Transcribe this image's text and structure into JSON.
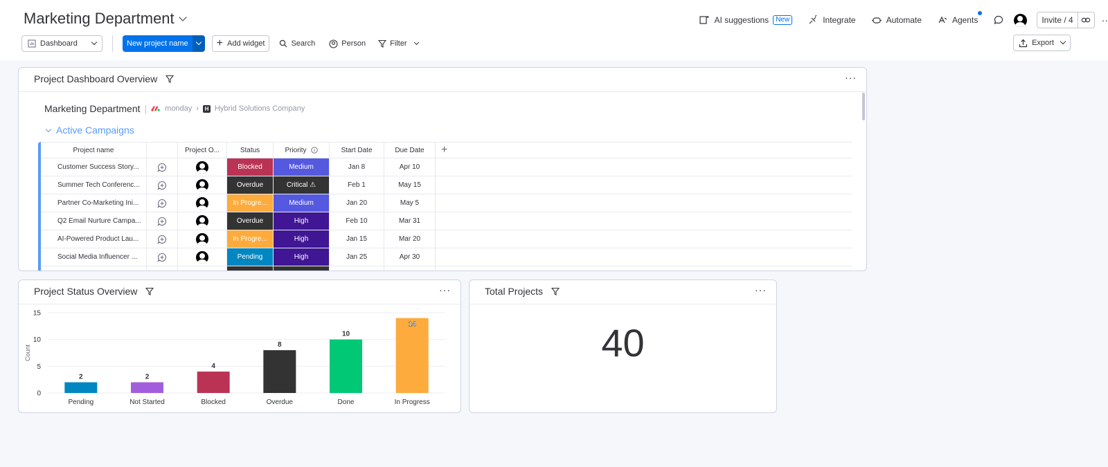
{
  "header": {
    "title": "Marketing Department",
    "ai_suggestions": "AI suggestions",
    "new_badge": "New",
    "integrate": "Integrate",
    "automate": "Automate",
    "agents": "Agents",
    "invite": "Invite / 4"
  },
  "toolbar": {
    "dashboard_select": "Dashboard",
    "new_project": "New project name",
    "add_widget": "Add widget",
    "search": "Search",
    "person": "Person",
    "filter": "Filter",
    "export": "Export"
  },
  "widget_table": {
    "title": "Project Dashboard Overview",
    "board_name": "Marketing Department",
    "workspace_app": "monday",
    "workspace": "Hybrid Solutions Company",
    "workspace_initial": "H",
    "group": "Active Campaigns",
    "columns": {
      "name": "Project name",
      "owner": "Project O...",
      "status": "Status",
      "priority": "Priority",
      "start": "Start Date",
      "due": "Due Date"
    },
    "rows": [
      {
        "name": "Customer Success Story...",
        "status": "Blocked",
        "priority": "Medium",
        "start": "Jan 8",
        "due": "Apr 10"
      },
      {
        "name": "Summer Tech Conferenc...",
        "status": "Overdue",
        "priority": "Critical ⚠",
        "start": "Feb 1",
        "due": "May 15"
      },
      {
        "name": "Partner Co-Marketing Ini...",
        "status": "In Progre...",
        "priority": "Medium",
        "start": "Jan 20",
        "due": "May 5"
      },
      {
        "name": "Q2 Email Nurture Campa...",
        "status": "Overdue",
        "priority": "High",
        "start": "Feb 10",
        "due": "Mar 31"
      },
      {
        "name": "AI-Powered Product Lau...",
        "status": "In Progre...",
        "priority": "High",
        "start": "Jan 15",
        "due": "Mar 20"
      },
      {
        "name": "Social Media Influencer ...",
        "status": "Pending",
        "priority": "High",
        "start": "Jan 25",
        "due": "Apr 30"
      }
    ]
  },
  "colors": {
    "Blocked": "#bb3354",
    "Overdue": "#333333",
    "In Progre...": "#fdab3d",
    "Pending": "#0086c0",
    "Medium": "#5559df",
    "Critical ⚠": "#333333",
    "High": "#401694"
  },
  "widget_chart": {
    "title": "Project Status Overview"
  },
  "chart_data": {
    "type": "bar",
    "categories": [
      "Pending",
      "Not Started",
      "Blocked",
      "Overdue",
      "Done",
      "In Progress"
    ],
    "values": [
      2,
      2,
      4,
      8,
      10,
      14
    ],
    "colors": [
      "#0086c0",
      "#a25ddc",
      "#bb3354",
      "#333333",
      "#00c875",
      "#fdab3d"
    ],
    "ylabel": "Count",
    "ylim": [
      0,
      15
    ],
    "yticks": [
      0,
      5,
      10,
      15
    ],
    "grid": true
  },
  "widget_number": {
    "title": "Total Projects",
    "value": "40"
  }
}
